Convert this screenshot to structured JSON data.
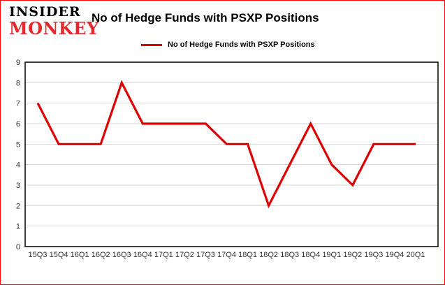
{
  "logo": {
    "line1": "INSIDER",
    "line2": "MONKEY",
    "line1_color": "#000000",
    "line2_color": "#e8262d"
  },
  "header": {
    "title": "No of Hedge Funds with PSXP Positions"
  },
  "legend": {
    "label": "No of Hedge Funds with PSXP Positions",
    "line_color": "#dd0000"
  },
  "chart_data": {
    "type": "line",
    "title": "No of Hedge Funds with PSXP Positions",
    "categories": [
      "15Q3",
      "15Q4",
      "16Q1",
      "16Q2",
      "16Q3",
      "16Q4",
      "17Q1",
      "17Q2",
      "17Q3",
      "17Q4",
      "18Q1",
      "18Q2",
      "18Q3",
      "18Q4",
      "19Q1",
      "19Q2",
      "19Q3",
      "19Q4",
      "20Q1"
    ],
    "values": [
      7,
      5,
      5,
      5,
      8,
      6,
      6,
      6,
      6,
      5,
      5,
      2,
      4,
      6,
      4,
      3,
      5,
      5,
      5
    ],
    "xlabel": "",
    "ylabel": "",
    "ylim": [
      0,
      9
    ],
    "yticks": [
      0,
      1,
      2,
      3,
      4,
      5,
      6,
      7,
      8,
      9
    ],
    "line_color": "#dd0000",
    "grid": true,
    "grid_color": "#d6d6d6",
    "axis_border_color": "#000000",
    "legend_position": "top"
  }
}
